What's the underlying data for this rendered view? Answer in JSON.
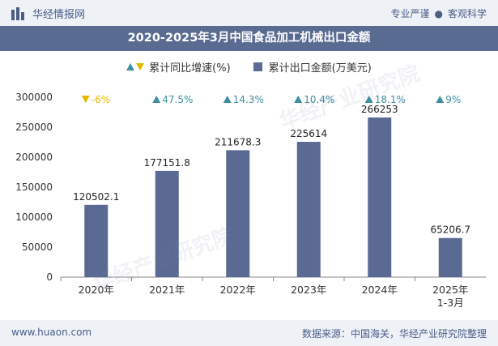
{
  "header": {
    "brand": "华经情报网",
    "tag1": "专业严谨",
    "tag2": "客观科学"
  },
  "title": "2020-2025年3月中国食品加工机械出口金额",
  "legend": {
    "growth": "累计同比增速(%)",
    "amount": "累计出口金额(万美元)"
  },
  "colors": {
    "bar": "#5b6a93",
    "up": "#3f8fa4",
    "down": "#e5b800",
    "banner": "#5a6b92"
  },
  "chart_data": {
    "type": "bar",
    "categories": [
      "2020年",
      "2021年",
      "2022年",
      "2023年",
      "2024年",
      "2025年\n1-3月"
    ],
    "series": [
      {
        "name": "累计出口金额(万美元)",
        "values": [
          120502.1,
          177151.8,
          211678.3,
          225614,
          266253,
          65206.7
        ],
        "labels": [
          "120502.1",
          "177151.8",
          "211678.3",
          "225614",
          "266253",
          "65206.7"
        ]
      },
      {
        "name": "累计同比增速(%)",
        "values": [
          -6,
          47.5,
          14.3,
          10.4,
          18.1,
          9
        ],
        "labels": [
          "-6%",
          "47.5%",
          "14.3%",
          "10.4%",
          "18.1%",
          "9%"
        ]
      }
    ],
    "ylim": [
      0,
      300000
    ],
    "yticks": [
      "0",
      "50000",
      "100000",
      "150000",
      "200000",
      "250000",
      "300000"
    ],
    "grid": false
  },
  "footer": {
    "website": "www.huaon.com",
    "source": "数据来源：中国海关，华经产业研究院整理"
  }
}
